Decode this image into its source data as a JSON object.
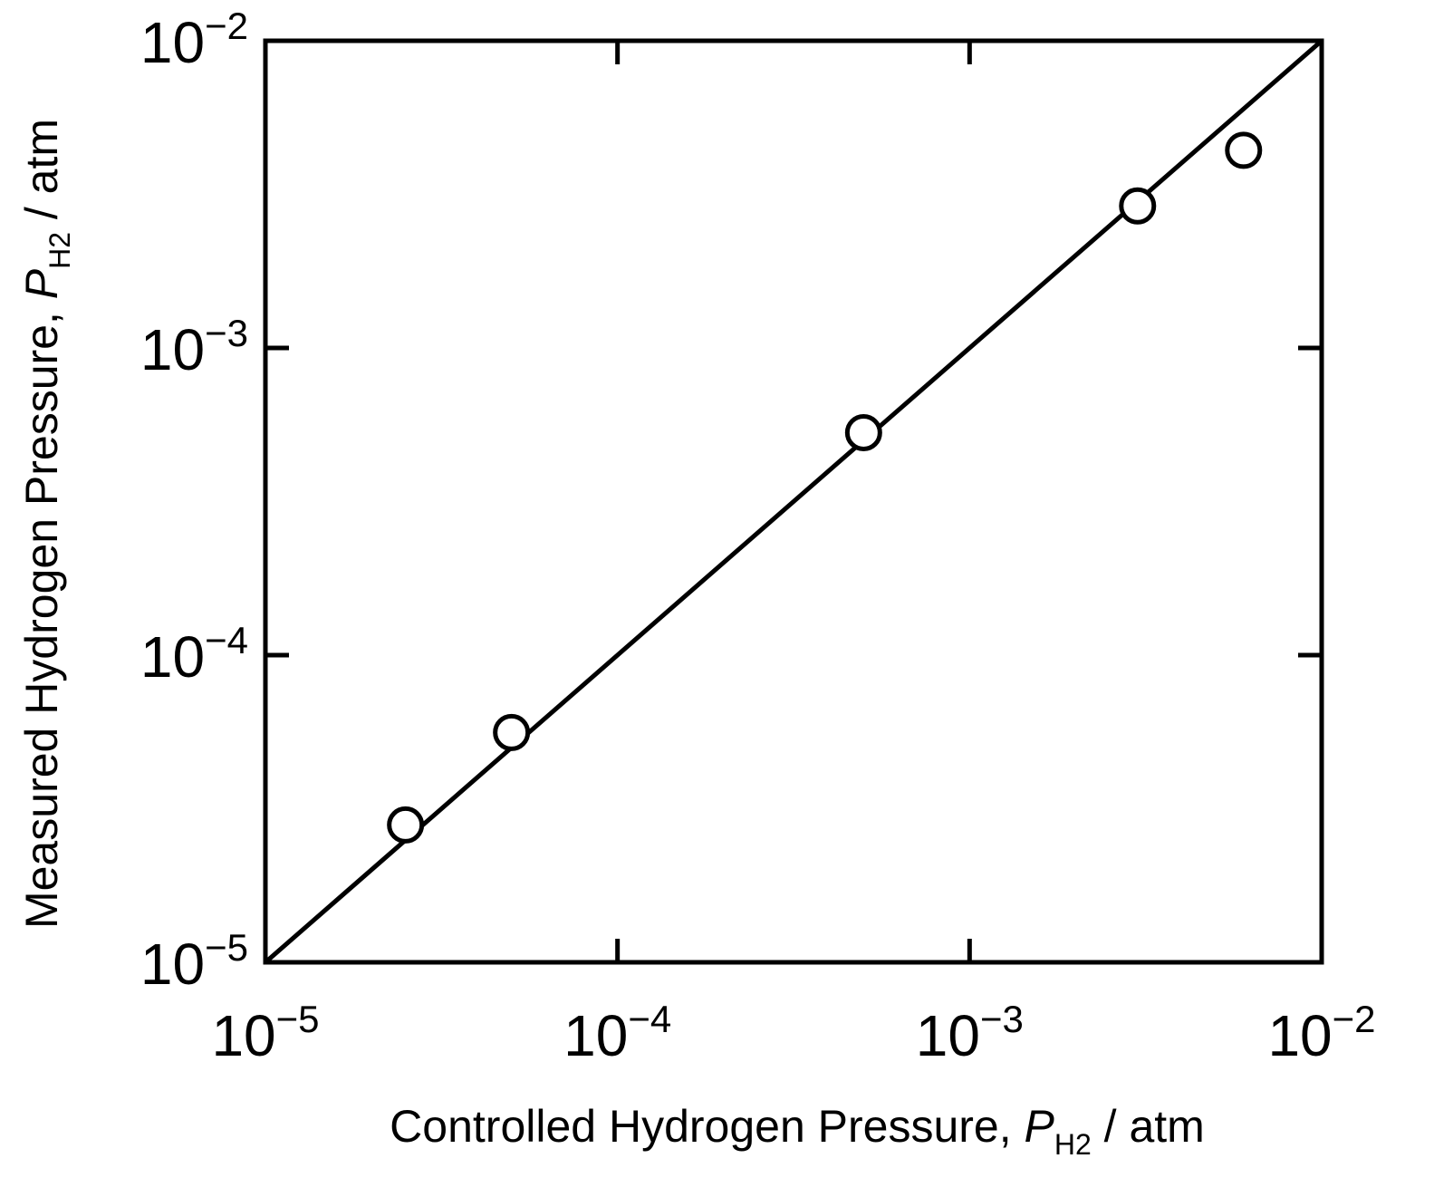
{
  "chart_data": {
    "type": "scatter",
    "xscale": "log",
    "yscale": "log",
    "xlim": [
      1e-05,
      0.01
    ],
    "ylim": [
      1e-05,
      0.01
    ],
    "grid": false,
    "xlabel": {
      "prefix": "Controlled Hydrogen Pressure, ",
      "symbol": "P",
      "subscript": "H2",
      "unit": " / atm"
    },
    "ylabel": {
      "prefix": "Measured Hydrogen Pressure, ",
      "symbol": "P",
      "subscript": "H2",
      "unit": " / atm"
    },
    "x_ticks": [
      {
        "value": 1e-05,
        "base": "10",
        "exp": "−5"
      },
      {
        "value": 0.0001,
        "base": "10",
        "exp": "−4"
      },
      {
        "value": 0.001,
        "base": "10",
        "exp": "−3"
      },
      {
        "value": 0.01,
        "base": "10",
        "exp": "−2"
      }
    ],
    "y_ticks": [
      {
        "value": 1e-05,
        "base": "10",
        "exp": "−5"
      },
      {
        "value": 0.0001,
        "base": "10",
        "exp": "−4"
      },
      {
        "value": 0.001,
        "base": "10",
        "exp": "−3"
      },
      {
        "value": 0.01,
        "base": "10",
        "exp": "−2"
      }
    ],
    "series": [
      {
        "marker": "open-circle",
        "points": [
          {
            "x": 2.5e-05,
            "y": 2.8e-05
          },
          {
            "x": 5e-05,
            "y": 5.6e-05
          },
          {
            "x": 0.0005,
            "y": 0.00053
          },
          {
            "x": 0.003,
            "y": 0.0029
          },
          {
            "x": 0.006,
            "y": 0.0044
          }
        ]
      }
    ],
    "reference_line": {
      "style": "solid",
      "from": {
        "x": 1e-05,
        "y": 1e-05
      },
      "to": {
        "x": 0.01,
        "y": 0.01
      }
    },
    "colors": {
      "ink": "#000000",
      "background": "#ffffff",
      "marker_fill": "#ffffff"
    }
  }
}
